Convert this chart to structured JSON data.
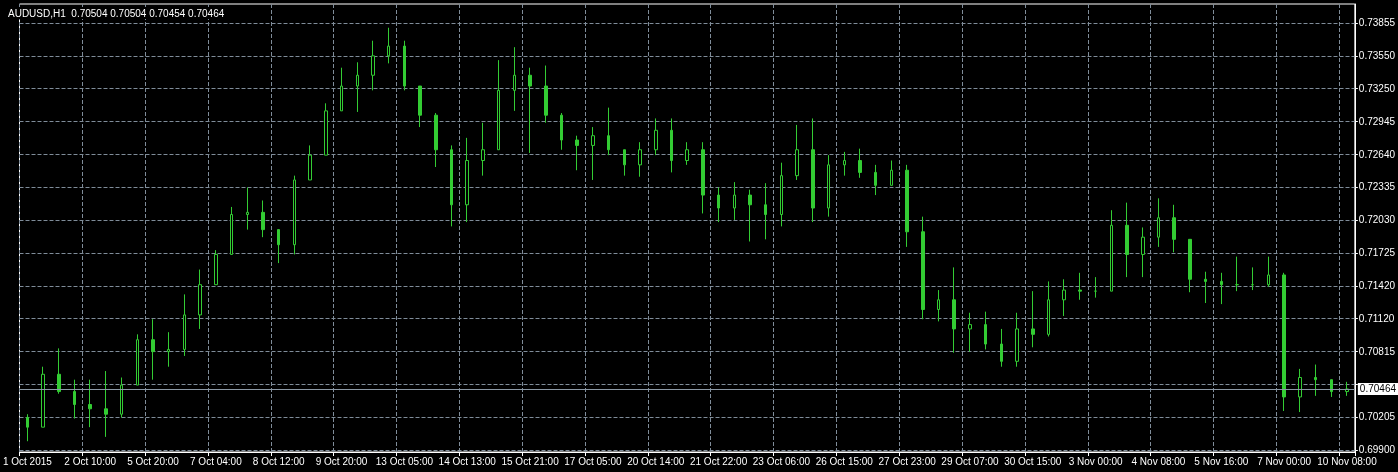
{
  "chart_data": {
    "type": "candlestick",
    "title": "AUDUSD,H1  0.70504 0.70504 0.70454 0.70464",
    "categories": [
      "1 Oct 2015",
      null,
      null,
      null,
      "2 Oct 10:00",
      null,
      null,
      null,
      "5 Oct 20:00",
      null,
      null,
      null,
      "7 Oct 04:00",
      null,
      null,
      null,
      "8 Oct 12:00",
      null,
      null,
      null,
      "9 Oct 20:00",
      null,
      null,
      null,
      "13 Oct 05:00",
      null,
      null,
      null,
      "14 Oct 13:00",
      null,
      null,
      null,
      "15 Oct 21:00",
      null,
      null,
      null,
      "17 Oct 05:00",
      null,
      null,
      null,
      "20 Oct 14:00",
      null,
      null,
      null,
      "21 Oct 22:00",
      null,
      null,
      null,
      "23 Oct 06:00",
      null,
      null,
      null,
      "26 Oct 15:00",
      null,
      null,
      null,
      "27 Oct 23:00",
      null,
      null,
      null,
      "29 Oct 07:00",
      null,
      null,
      null,
      "30 Oct 15:00",
      null,
      null,
      null,
      "3 Nov 00:00",
      null,
      null,
      null,
      "4 Nov 08:00",
      null,
      null,
      null,
      "5 Nov 16:00",
      null,
      null,
      null,
      "7 Nov 00:00",
      null,
      null,
      null,
      "10 Nov 08:00"
    ],
    "series": [
      {
        "color": "#33cc33",
        "ohlc": [
          [
            0.702,
            0.7023,
            0.6998,
            0.7011
          ],
          [
            0.7011,
            0.7067,
            0.7011,
            0.706
          ],
          [
            0.706,
            0.7084,
            0.7042,
            0.7044
          ],
          [
            0.7044,
            0.7055,
            0.7019,
            0.7032
          ],
          [
            0.7032,
            0.7055,
            0.7011,
            0.7028
          ],
          [
            0.7028,
            0.7063,
            0.7002,
            0.7023
          ],
          [
            0.7023,
            0.7057,
            0.702,
            0.705
          ],
          [
            0.705,
            0.7097,
            0.705,
            0.7092
          ],
          [
            0.7092,
            0.7111,
            0.7055,
            0.7081
          ],
          [
            0.7081,
            0.7099,
            0.7067,
            0.7083
          ],
          [
            0.7083,
            0.7134,
            0.7077,
            0.7115
          ],
          [
            0.7115,
            0.7157,
            0.7102,
            0.7143
          ],
          [
            0.7143,
            0.7175,
            0.7143,
            0.7171
          ],
          [
            0.7171,
            0.7215,
            0.7171,
            0.7208
          ],
          [
            0.7208,
            0.7233,
            0.7194,
            0.721
          ],
          [
            0.721,
            0.7221,
            0.7187,
            0.7194
          ],
          [
            0.7194,
            0.7194,
            0.7163,
            0.718
          ],
          [
            0.718,
            0.7244,
            0.7171,
            0.724
          ],
          [
            0.724,
            0.7272,
            0.724,
            0.7263
          ],
          [
            0.7263,
            0.7311,
            0.7263,
            0.7304
          ],
          [
            0.7304,
            0.7344,
            0.7304,
            0.7327
          ],
          [
            0.7327,
            0.7349,
            0.7303,
            0.7337
          ],
          [
            0.7337,
            0.7369,
            0.7323,
            0.7355
          ],
          [
            0.7355,
            0.7381,
            0.7348,
            0.7364
          ],
          [
            0.7364,
            0.7369,
            0.7323,
            0.7327
          ],
          [
            0.7327,
            0.7327,
            0.7289,
            0.73
          ],
          [
            0.73,
            0.7302,
            0.7252,
            0.7268
          ],
          [
            0.7268,
            0.7272,
            0.7197,
            0.7217
          ],
          [
            0.7217,
            0.7279,
            0.7201,
            0.7258
          ],
          [
            0.7258,
            0.7293,
            0.7244,
            0.7268
          ],
          [
            0.7268,
            0.7351,
            0.7268,
            0.7323
          ],
          [
            0.7323,
            0.7363,
            0.7304,
            0.7337
          ],
          [
            0.7337,
            0.7344,
            0.7265,
            0.7327
          ],
          [
            0.7327,
            0.7346,
            0.7293,
            0.73
          ],
          [
            0.73,
            0.7302,
            0.7268,
            0.7277
          ],
          [
            0.7277,
            0.7281,
            0.7249,
            0.7272
          ],
          [
            0.7272,
            0.7289,
            0.724,
            0.7281
          ],
          [
            0.7281,
            0.7307,
            0.7263,
            0.7268
          ],
          [
            0.7268,
            0.7268,
            0.7244,
            0.7254
          ],
          [
            0.7254,
            0.7275,
            0.7243,
            0.7268
          ],
          [
            0.7268,
            0.7297,
            0.7263,
            0.7286
          ],
          [
            0.7286,
            0.7297,
            0.7247,
            0.7258
          ],
          [
            0.7258,
            0.7275,
            0.7254,
            0.7268
          ],
          [
            0.7268,
            0.7275,
            0.7209,
            0.7226
          ],
          [
            0.7226,
            0.7233,
            0.7201,
            0.7214
          ],
          [
            0.7214,
            0.7238,
            0.7203,
            0.7226
          ],
          [
            0.7226,
            0.7231,
            0.7183,
            0.7217
          ],
          [
            0.7217,
            0.7237,
            0.7185,
            0.7208
          ],
          [
            0.7208,
            0.7256,
            0.7197,
            0.7244
          ],
          [
            0.7244,
            0.7291,
            0.724,
            0.7268
          ],
          [
            0.7268,
            0.7297,
            0.7201,
            0.7214
          ],
          [
            0.7214,
            0.7263,
            0.7206,
            0.7254
          ],
          [
            0.7254,
            0.7266,
            0.7244,
            0.7258
          ],
          [
            0.7258,
            0.7269,
            0.7242,
            0.7247
          ],
          [
            0.7247,
            0.7254,
            0.7226,
            0.7235
          ],
          [
            0.7235,
            0.7258,
            0.7235,
            0.7249
          ],
          [
            0.7249,
            0.7254,
            0.7178,
            0.7192
          ],
          [
            0.7192,
            0.7206,
            0.7111,
            0.712
          ],
          [
            0.712,
            0.7138,
            0.7109,
            0.7129
          ],
          [
            0.7129,
            0.7159,
            0.708,
            0.7102
          ],
          [
            0.7102,
            0.7117,
            0.7081,
            0.7106
          ],
          [
            0.7106,
            0.7118,
            0.7083,
            0.7088
          ],
          [
            0.7088,
            0.7102,
            0.7067,
            0.7072
          ],
          [
            0.7072,
            0.7117,
            0.7067,
            0.7102
          ],
          [
            0.7102,
            0.7137,
            0.7085,
            0.7097
          ],
          [
            0.7097,
            0.7146,
            0.7095,
            0.7129
          ],
          [
            0.7129,
            0.7148,
            0.7114,
            0.7138
          ],
          [
            0.7138,
            0.7154,
            0.7129,
            0.7137
          ],
          [
            0.7137,
            0.715,
            0.7131,
            0.7137
          ],
          [
            0.7137,
            0.7212,
            0.7137,
            0.7198
          ],
          [
            0.7198,
            0.7219,
            0.715,
            0.7171
          ],
          [
            0.7171,
            0.7196,
            0.715,
            0.7187
          ],
          [
            0.7187,
            0.7223,
            0.7178,
            0.7205
          ],
          [
            0.7205,
            0.7217,
            0.7173,
            0.7185
          ],
          [
            0.7185,
            0.7185,
            0.7136,
            0.7148
          ],
          [
            0.7148,
            0.7155,
            0.7126,
            0.7146
          ],
          [
            0.7146,
            0.7154,
            0.7125,
            0.7143
          ],
          [
            0.7143,
            0.7169,
            0.7137,
            0.7143
          ],
          [
            0.7143,
            0.7159,
            0.7138,
            0.7143
          ],
          [
            0.7143,
            0.7169,
            0.7141,
            0.7152
          ],
          [
            0.7152,
            0.7154,
            0.7026,
            0.7039
          ],
          [
            0.7039,
            0.7065,
            0.7025,
            0.7057
          ],
          [
            0.7057,
            0.7069,
            0.704,
            0.7055
          ],
          [
            0.7055,
            0.7055,
            0.7039,
            0.7044
          ],
          [
            0.7044,
            0.7053,
            0.704,
            0.70464
          ]
        ]
      }
    ],
    "ylim": [
      0.6988,
      0.7403
    ],
    "yticks": [
      0.73855,
      {
        "value": 0.7355,
        "label": "0.73550"
      },
      {
        "value": 0.7325,
        "label": "0.73250"
      },
      0.72945,
      {
        "value": 0.7264,
        "label": "0.72640"
      },
      0.72335,
      {
        "value": 0.7203,
        "label": "0.72030"
      },
      0.71725,
      {
        "value": 0.7142,
        "label": "0.71420"
      },
      {
        "value": 0.7112,
        "label": "0.71120"
      },
      0.70815,
      {
        "value": 0.7051,
        "label": null
      },
      0.70205,
      {
        "value": 0.699,
        "label": "0.69900"
      }
    ],
    "grid": true,
    "ref_lines": [
      {
        "axis": "y",
        "value": 0.70464,
        "label": "0.70464",
        "color": "#8c99a6"
      }
    ]
  }
}
